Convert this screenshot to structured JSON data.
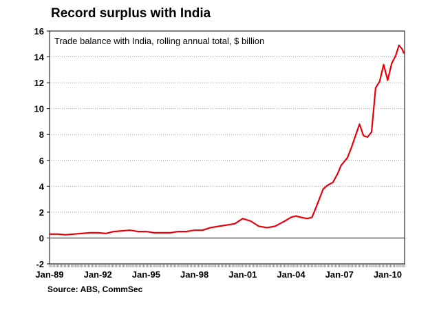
{
  "chart_data": {
    "type": "line",
    "title": "Record surplus with India",
    "subtitle": "Trade balance with India, rolling annual total, $ billion",
    "source": "Source: ABS, CommSec",
    "ylim": [
      -2,
      16
    ],
    "yticks": [
      -2,
      0,
      2,
      4,
      6,
      8,
      10,
      12,
      14,
      16
    ],
    "xlim": [
      1989.0,
      2011.05
    ],
    "xtick_labels": [
      "Jan-89",
      "Jan-92",
      "Jan-95",
      "Jan-98",
      "Jan-01",
      "Jan-04",
      "Jan-07",
      "Jan-10"
    ],
    "xtick_years": [
      1989,
      1992,
      1995,
      1998,
      2001,
      2004,
      2007,
      2010
    ],
    "grid": "horizontal dotted",
    "line_color": "#e8000b",
    "series": [
      {
        "x": [
          1989.0,
          1989.5,
          1990.0,
          1990.5,
          1991.0,
          1991.5,
          1992.0,
          1992.5,
          1993.0,
          1993.5,
          1994.0,
          1994.5,
          1995.0,
          1995.5,
          1996.0,
          1996.5,
          1997.0,
          1997.5,
          1998.0,
          1998.5,
          1999.0,
          1999.5,
          2000.0,
          2000.5,
          2001.0,
          2001.5,
          2002.0,
          2002.5,
          2003.0,
          2003.3,
          2003.6,
          2004.0,
          2004.3,
          2004.6,
          2005.0,
          2005.3,
          2005.5,
          2005.75,
          2006.0,
          2006.3,
          2006.6,
          2006.9,
          2007.1,
          2007.3,
          2007.5,
          2007.75,
          2008.0,
          2008.25,
          2008.5,
          2008.75,
          2009.0,
          2009.25,
          2009.5,
          2009.75,
          2010.0,
          2010.25,
          2010.5,
          2010.7,
          2010.9,
          2011.0
        ],
        "values": [
          0.3,
          0.3,
          0.25,
          0.3,
          0.35,
          0.4,
          0.4,
          0.35,
          0.5,
          0.55,
          0.6,
          0.5,
          0.5,
          0.4,
          0.4,
          0.4,
          0.5,
          0.5,
          0.6,
          0.6,
          0.8,
          0.9,
          1.0,
          1.1,
          1.5,
          1.3,
          0.9,
          0.8,
          0.9,
          1.1,
          1.3,
          1.6,
          1.7,
          1.6,
          1.5,
          1.6,
          2.2,
          3.0,
          3.8,
          4.1,
          4.3,
          5.0,
          5.6,
          5.9,
          6.2,
          7.0,
          7.9,
          8.8,
          7.9,
          7.8,
          8.2,
          11.6,
          12.1,
          13.4,
          12.2,
          13.5,
          14.1,
          14.9,
          14.6,
          14.3
        ]
      }
    ]
  }
}
